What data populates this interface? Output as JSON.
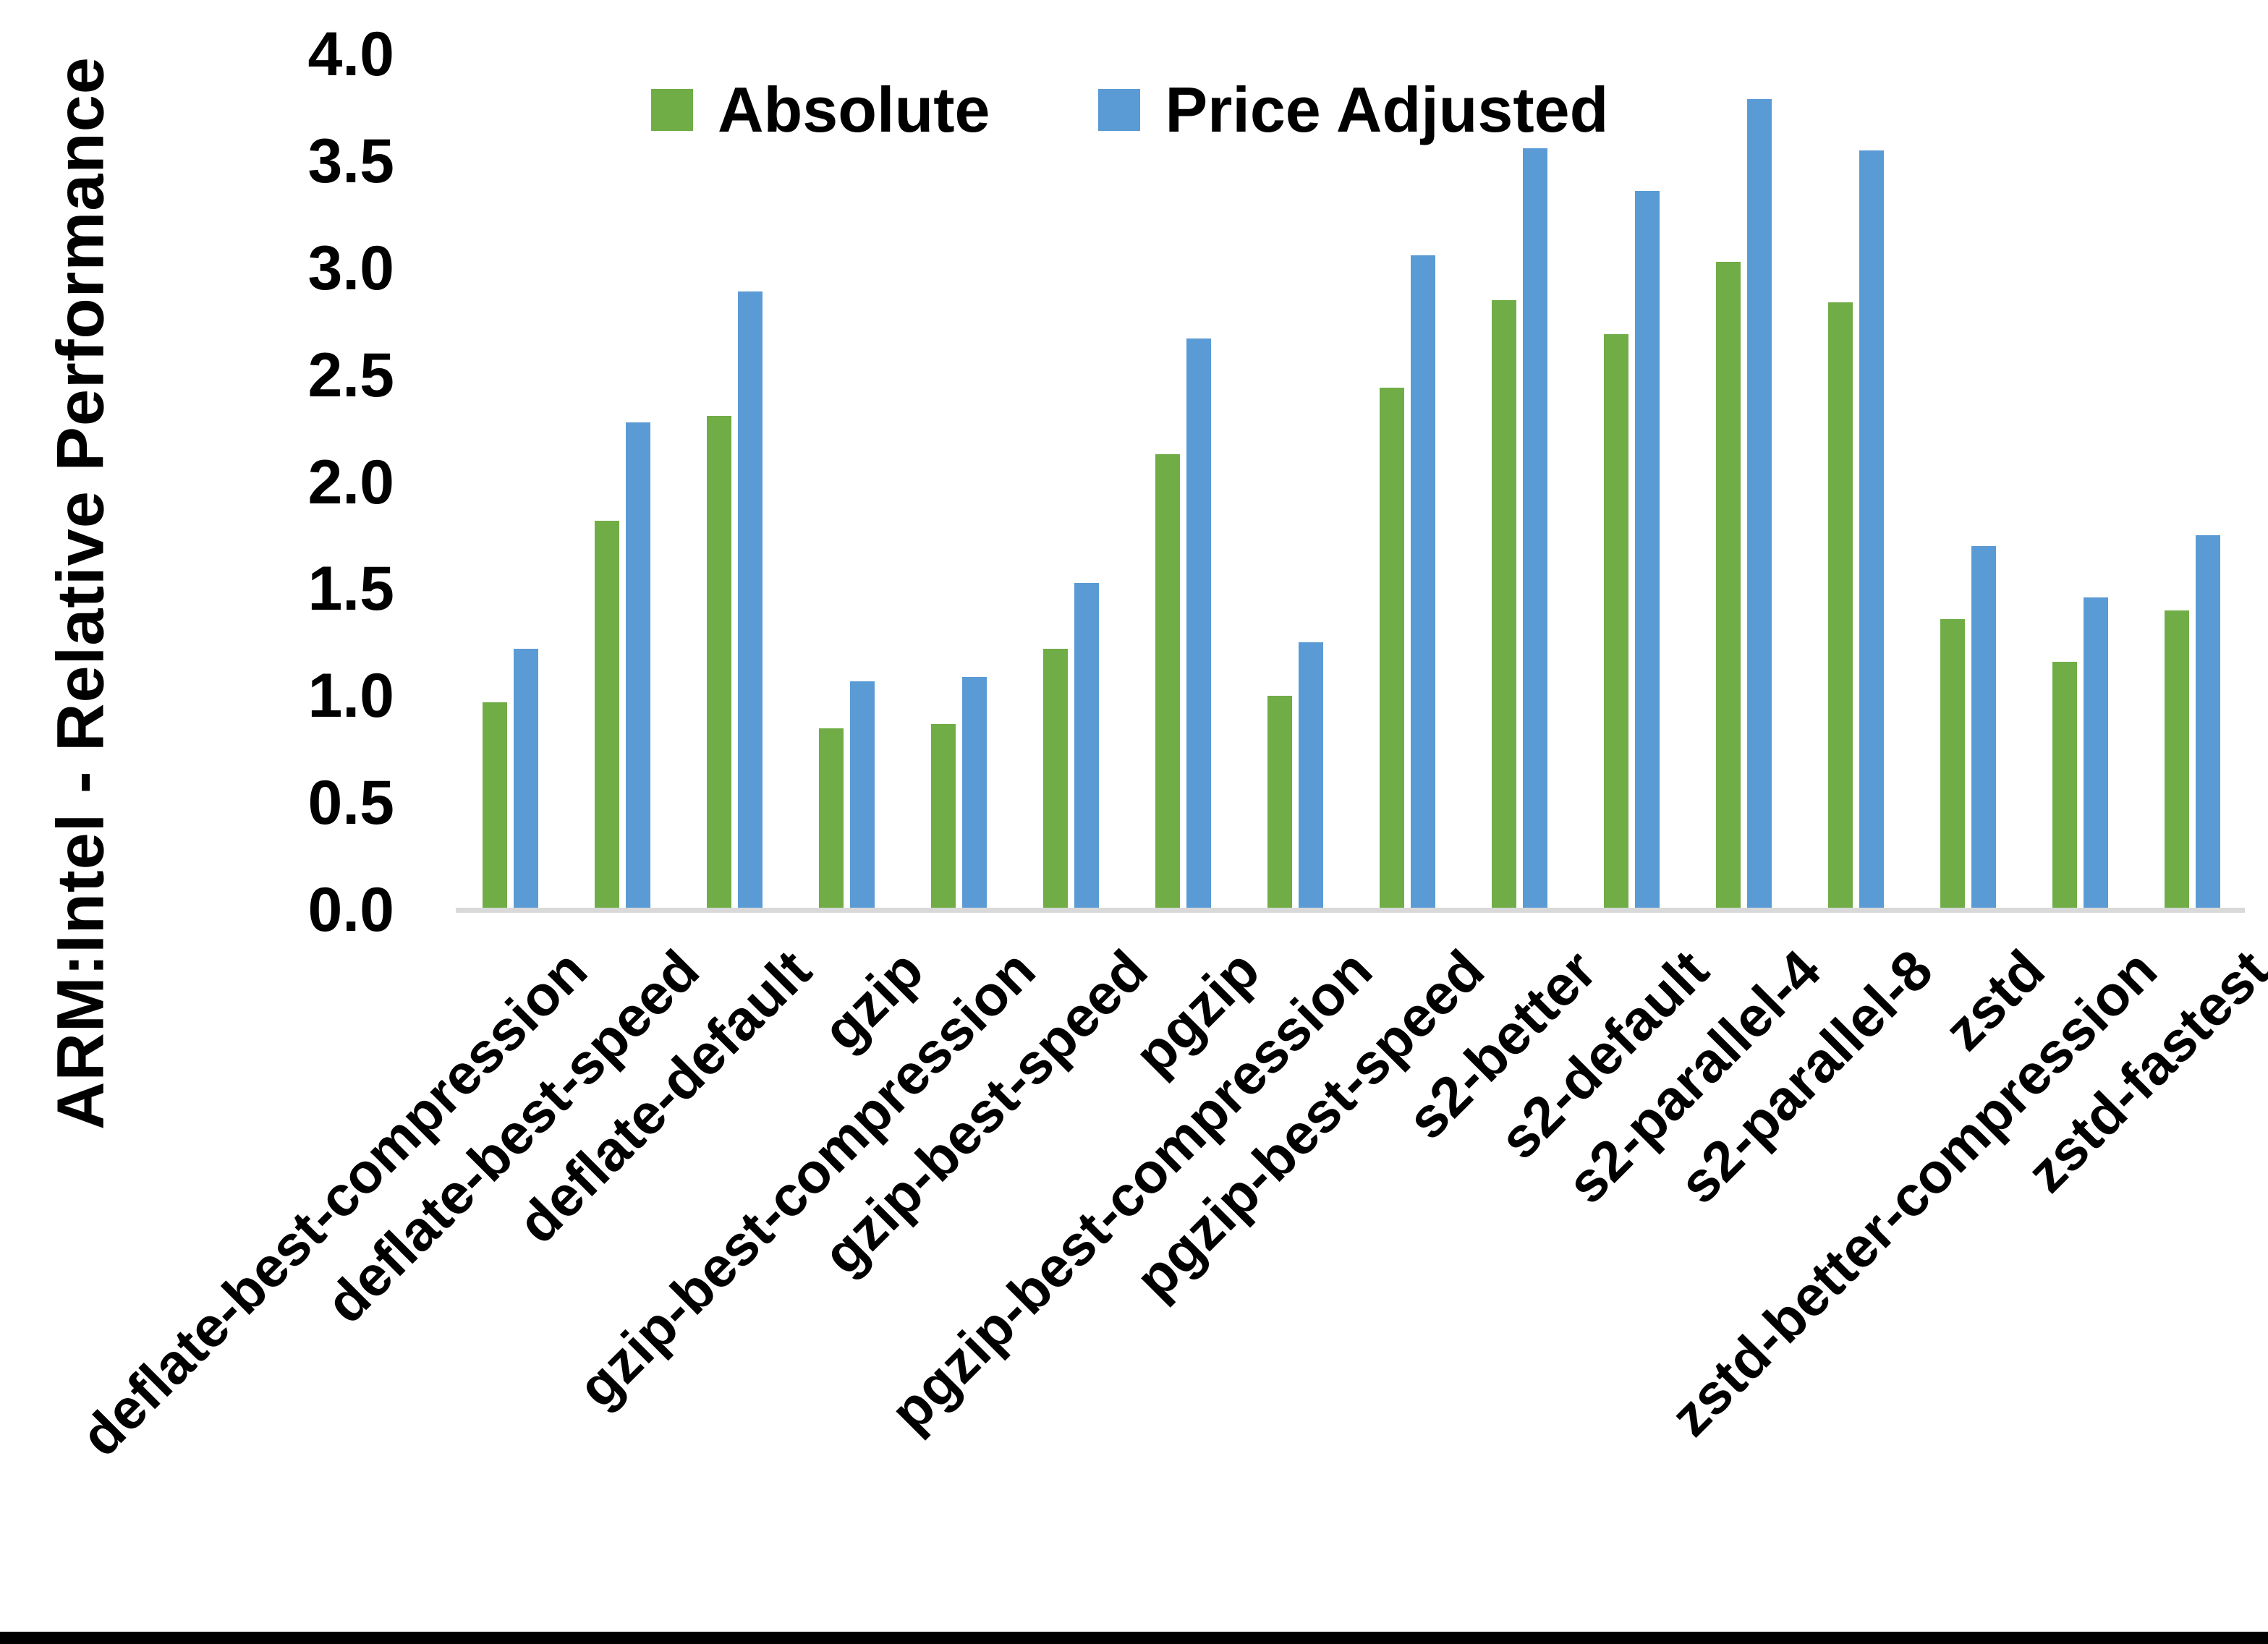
{
  "chart_data": {
    "type": "bar",
    "title": "",
    "xlabel": "",
    "ylabel": "ARM:Intel - Relative Performance",
    "ylim": [
      0.0,
      4.0
    ],
    "y_ticks": [
      "0.0",
      "0.5",
      "1.0",
      "1.5",
      "2.0",
      "2.5",
      "3.0",
      "3.5",
      "4.0"
    ],
    "grid": false,
    "legend_position": "top-center",
    "categories": [
      "deflate-best-compression",
      "deflate-best-speed",
      "deflate-default",
      "gzip",
      "gzip-best-compression",
      "gzip-best-speed",
      "pgzip",
      "pgzip-best-compression",
      "pgzip-best-speed",
      "s2-better",
      "s2-default",
      "s2-parallel-4",
      "s2-parallel-8",
      "zstd",
      "zstd-better-compression",
      "zstd-fastest"
    ],
    "series": [
      {
        "name": "Absolute",
        "color": "#70AD47",
        "values": [
          0.97,
          1.82,
          2.31,
          0.85,
          0.87,
          1.22,
          2.13,
          1.0,
          2.44,
          2.85,
          2.69,
          3.03,
          2.84,
          1.36,
          1.16,
          1.4
        ]
      },
      {
        "name": "Price Adjusted",
        "color": "#5B9BD5",
        "values": [
          1.22,
          2.28,
          2.89,
          1.07,
          1.09,
          1.53,
          2.67,
          1.25,
          3.06,
          3.56,
          3.36,
          3.79,
          3.55,
          1.7,
          1.46,
          1.75
        ]
      }
    ]
  },
  "page": {
    "background_color": "#FFFFFF",
    "axis_line_color": "#D9D9D9",
    "bottom_border_color": "#000000"
  }
}
